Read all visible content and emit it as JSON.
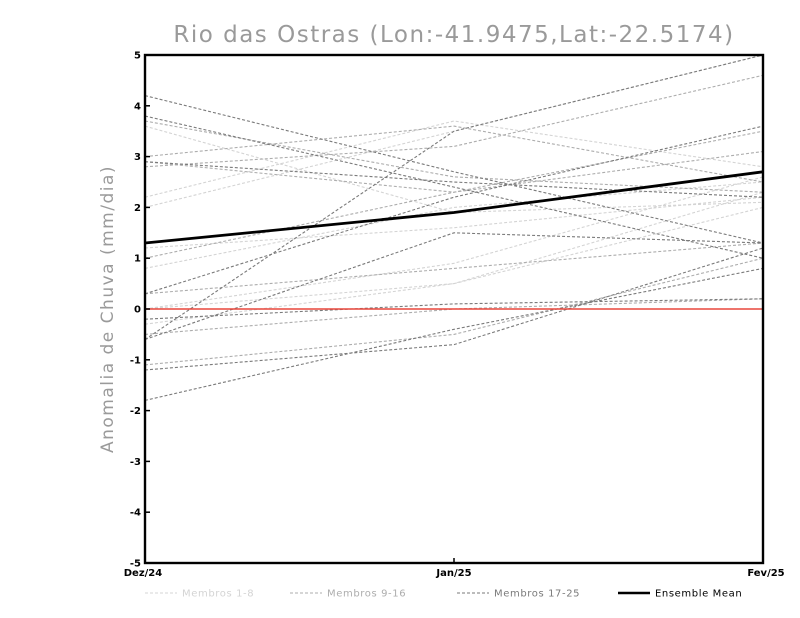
{
  "chart_data": {
    "type": "line",
    "title": "Rio das Ostras (Lon:-41.9475,Lat:-22.5174)",
    "ylabel": "Anomalia de Chuva (mm/dia)",
    "xlabel": "",
    "categories": [
      "Dez/24",
      "Jan/25",
      "Fev/25"
    ],
    "ylim": [
      -5,
      5
    ],
    "yticks": [
      -5,
      -4,
      -3,
      -2,
      -1,
      0,
      1,
      2,
      3,
      4,
      5
    ],
    "ytick_labels": [
      "-5",
      "-4",
      "-3",
      "-2",
      "-1",
      "0",
      "1",
      "2",
      "3",
      "4",
      "5"
    ],
    "grid": false,
    "legend_position": "bottom",
    "zero_line_color": "#e8473c",
    "groups": [
      {
        "name": "Membros 1-8",
        "color": "#d4d4d4",
        "series": [
          [
            2.2,
            3.7,
            2.8
          ],
          [
            2.0,
            3.5,
            5.0
          ],
          [
            1.2,
            1.6,
            2.2
          ],
          [
            0.8,
            2.0,
            2.5
          ],
          [
            0.0,
            0.5,
            2.0
          ],
          [
            0.0,
            0.9,
            2.6
          ],
          [
            -0.3,
            0.5,
            2.3
          ],
          [
            3.6,
            1.9,
            2.1
          ]
        ]
      },
      {
        "name": "Membros 9-16",
        "color": "#adadad",
        "series": [
          [
            3.0,
            3.6,
            2.5
          ],
          [
            3.7,
            2.6,
            2.3
          ],
          [
            1.0,
            2.3,
            3.5
          ],
          [
            0.3,
            0.8,
            1.3
          ],
          [
            -0.5,
            0.0,
            0.2
          ],
          [
            2.9,
            2.3,
            3.1
          ],
          [
            -1.1,
            -0.5,
            1.0
          ],
          [
            2.8,
            3.2,
            4.6
          ]
        ]
      },
      {
        "name": "Membros 17-25",
        "color": "#7a7a7a",
        "series": [
          [
            4.2,
            2.7,
            1.3
          ],
          [
            3.8,
            2.4,
            1.0
          ],
          [
            2.9,
            2.5,
            2.2
          ],
          [
            0.3,
            2.2,
            3.6
          ],
          [
            -0.6,
            3.5,
            5.0
          ],
          [
            -0.2,
            0.1,
            0.2
          ],
          [
            -1.2,
            -0.7,
            1.2
          ],
          [
            -1.8,
            -0.4,
            0.8
          ],
          [
            -0.6,
            1.5,
            1.3
          ]
        ]
      }
    ],
    "ensemble_mean": {
      "name": "Ensemble Mean",
      "color": "#000000",
      "values": [
        1.3,
        1.9,
        2.7
      ]
    }
  }
}
